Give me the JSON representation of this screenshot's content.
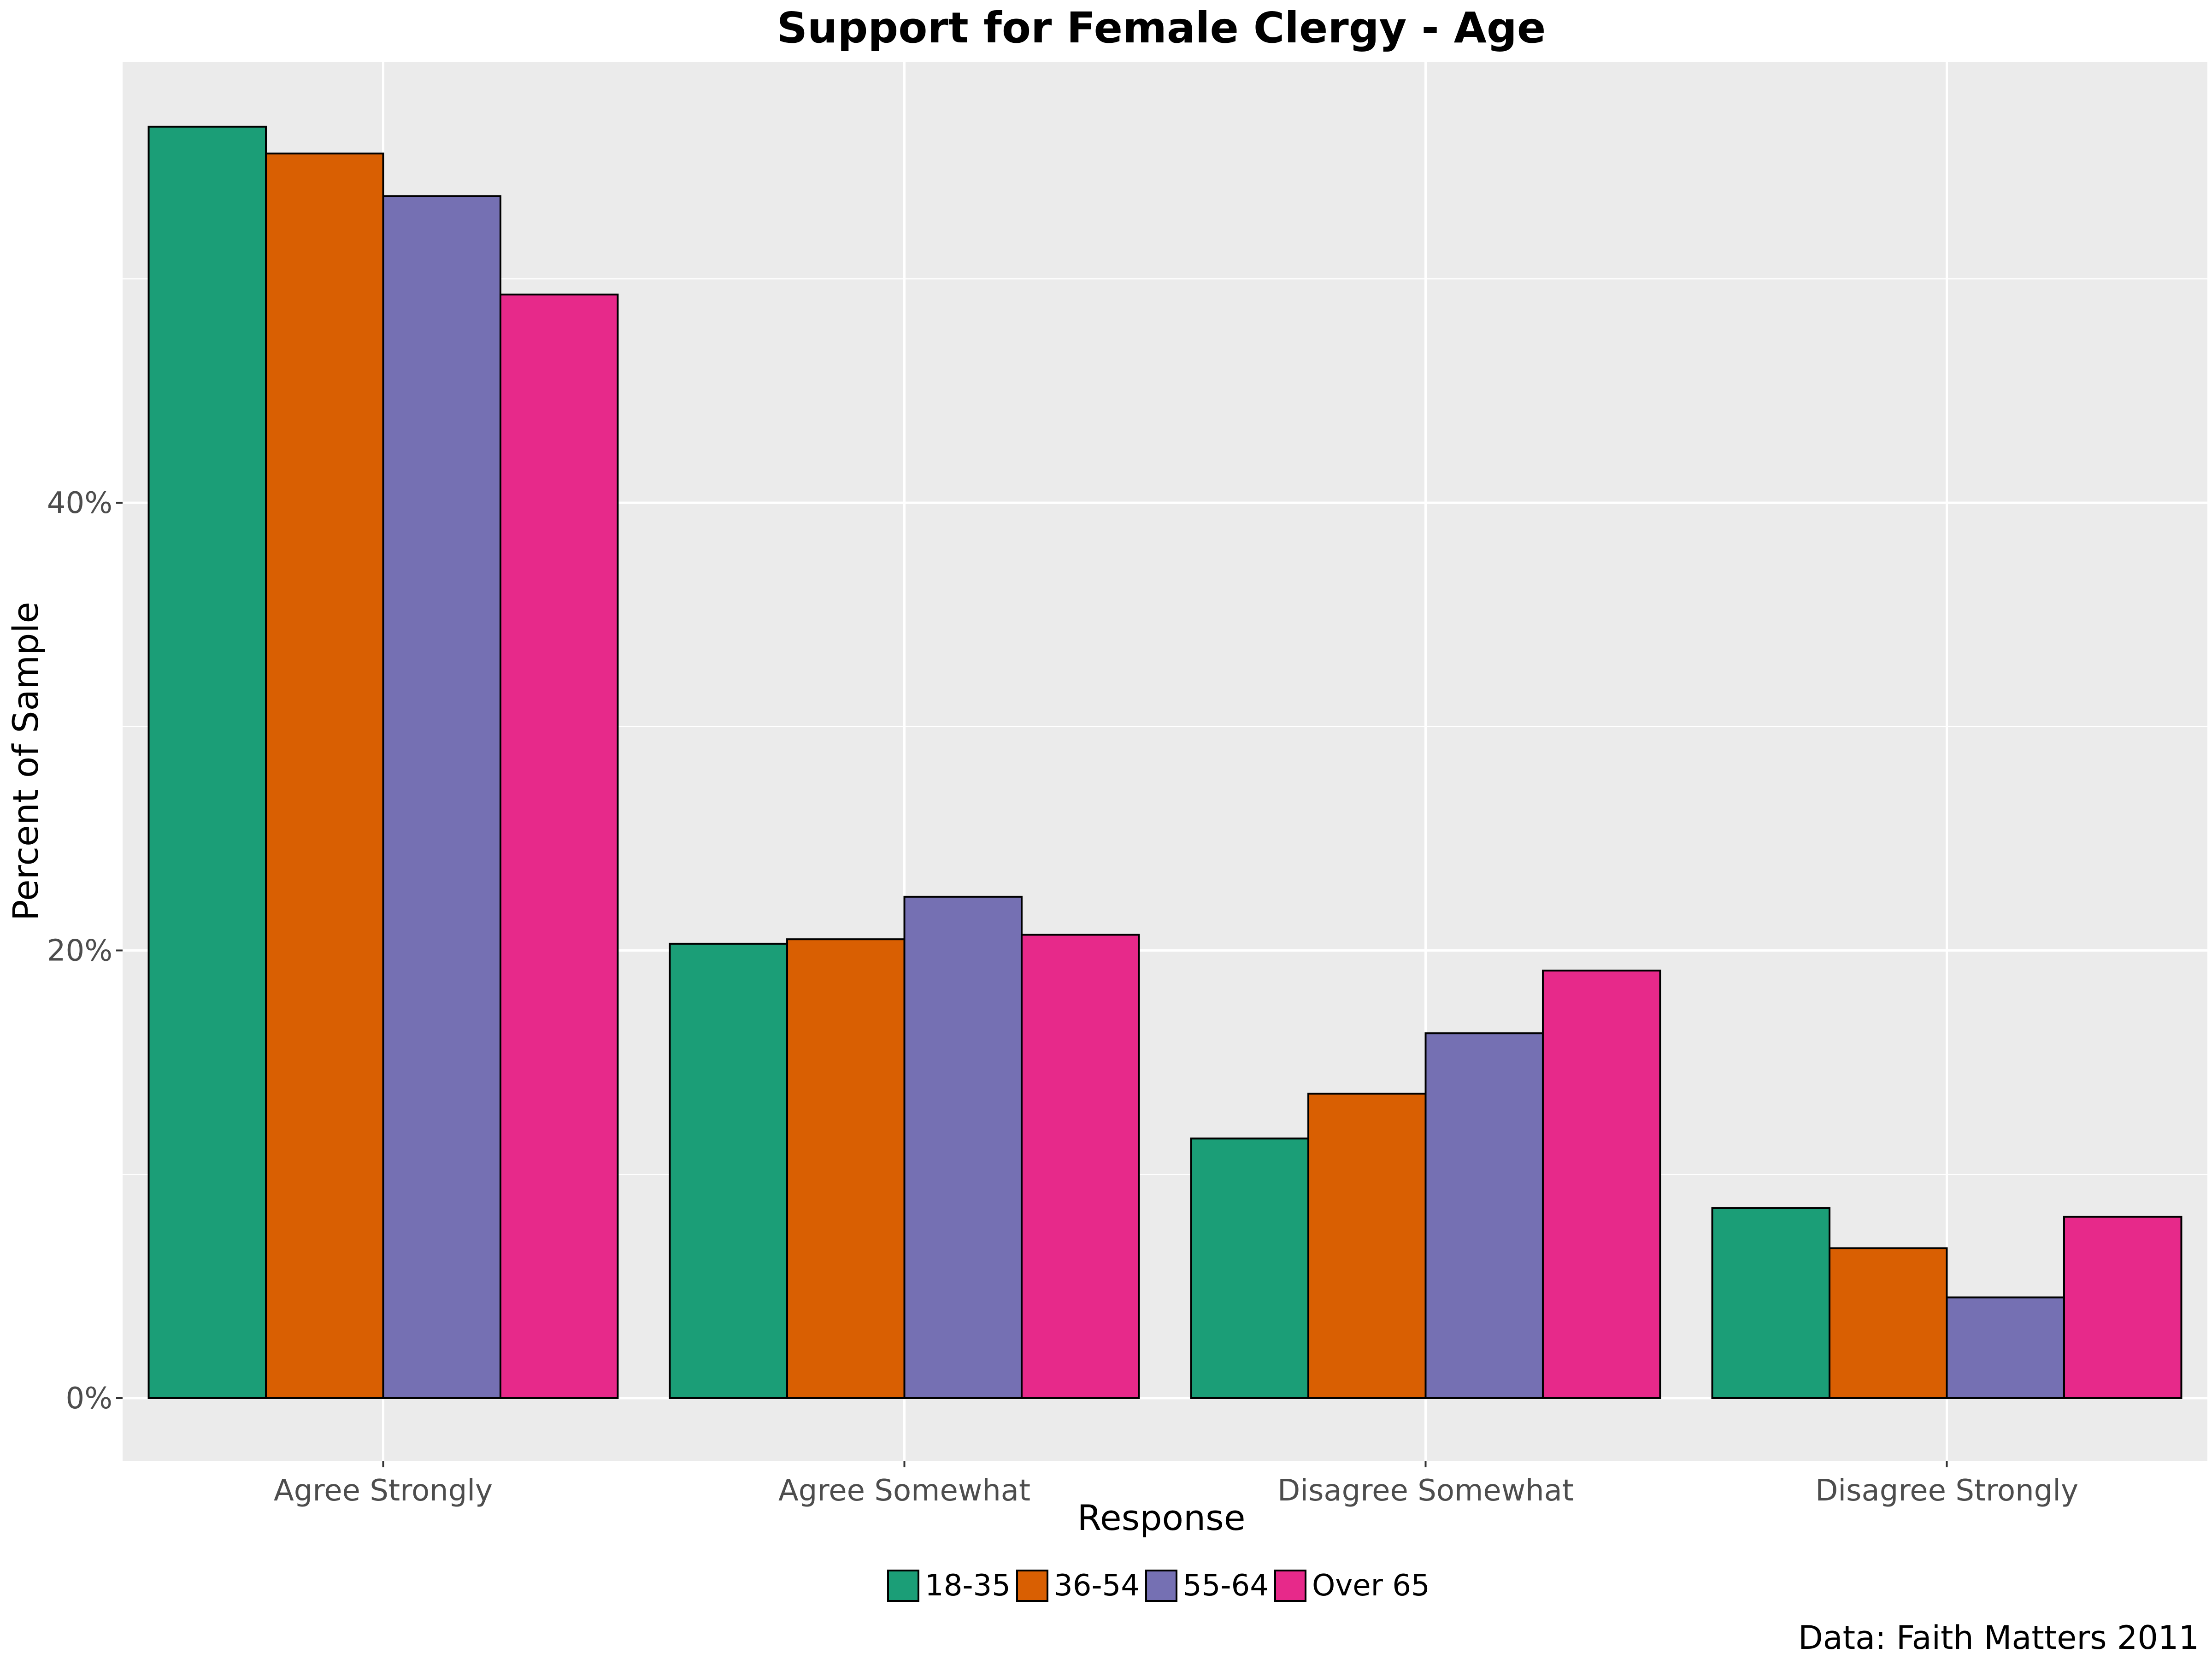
{
  "chart_data": {
    "type": "bar",
    "title": "Support for Female Clergy - Age",
    "xlabel": "Response",
    "ylabel": "Percent of Sample",
    "caption": "Data: Faith Matters 2011",
    "categories": [
      "Agree Strongly",
      "Agree Somewhat",
      "Disagree Somewhat",
      "Disagree Strongly"
    ],
    "series": [
      {
        "name": "18-35",
        "color": "#1B9E77",
        "values": [
          56.8,
          20.3,
          11.6,
          8.5
        ]
      },
      {
        "name": "36-54",
        "color": "#D95F02",
        "values": [
          55.6,
          20.5,
          13.6,
          6.7
        ]
      },
      {
        "name": "55-64",
        "color": "#7570B3",
        "values": [
          53.7,
          22.4,
          16.3,
          4.5
        ]
      },
      {
        "name": "Over 65",
        "color": "#E7298A",
        "values": [
          49.3,
          20.7,
          19.1,
          8.1
        ]
      }
    ],
    "yticks": [
      0,
      20,
      40
    ],
    "ytick_labels": [
      "0%",
      "20%",
      "40%"
    ],
    "ylim": [
      -2.8,
      59.7
    ],
    "grid": true,
    "legend_position": "bottom",
    "panel_background": "#EBEBEB",
    "grid_color": "#FFFFFF",
    "bar_outline": "#000000"
  }
}
